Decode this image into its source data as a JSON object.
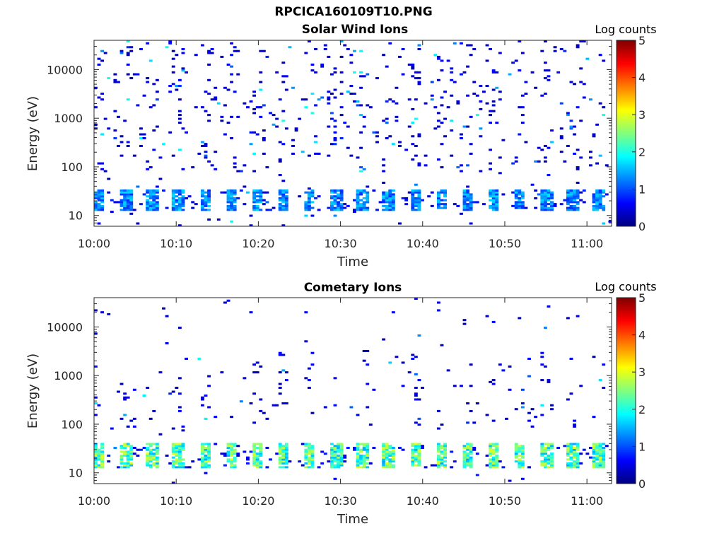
{
  "figure": {
    "title": "RPCICA160109T10.PNG"
  },
  "chart_data": [
    {
      "type": "heatmap",
      "title": "Solar Wind Ions",
      "xlabel": "Time",
      "ylabel": "Energy (eV)",
      "x_ticks": [
        "10:00",
        "10:10",
        "10:20",
        "10:30",
        "10:40",
        "10:50",
        "11:00"
      ],
      "x_range": [
        "10:00",
        "11:03"
      ],
      "y_scale": "log",
      "y_ticks": [
        "10",
        "100",
        "1000",
        "10000"
      ],
      "y_range": [
        6,
        40000
      ],
      "colorbar": {
        "label": "Log counts",
        "ticks": [
          "0",
          "1",
          "2",
          "3",
          "4",
          "5"
        ],
        "range": [
          0,
          5
        ],
        "colormap": "jet"
      },
      "description_values": {
        "low_energy_band_eV": [
          12,
          35
        ],
        "low_energy_band_log_counts": 1.5,
        "pulse_period_minutes": 3.2
      }
    },
    {
      "type": "heatmap",
      "title": "Cometary Ions",
      "xlabel": "Time",
      "ylabel": "Energy (eV)",
      "x_ticks": [
        "10:00",
        "10:10",
        "10:20",
        "10:30",
        "10:40",
        "10:50",
        "11:00"
      ],
      "x_range": [
        "10:00",
        "11:03"
      ],
      "y_scale": "log",
      "y_ticks": [
        "10",
        "100",
        "1000",
        "10000"
      ],
      "y_range": [
        6,
        40000
      ],
      "colorbar": {
        "label": "Log counts",
        "ticks": [
          "0",
          "1",
          "2",
          "3",
          "4",
          "5"
        ],
        "range": [
          0,
          5
        ],
        "colormap": "jet"
      },
      "description_values": {
        "low_energy_band_eV": [
          12,
          40
        ],
        "low_energy_band_log_counts": 2.6,
        "pulse_period_minutes": 3.2
      }
    }
  ]
}
